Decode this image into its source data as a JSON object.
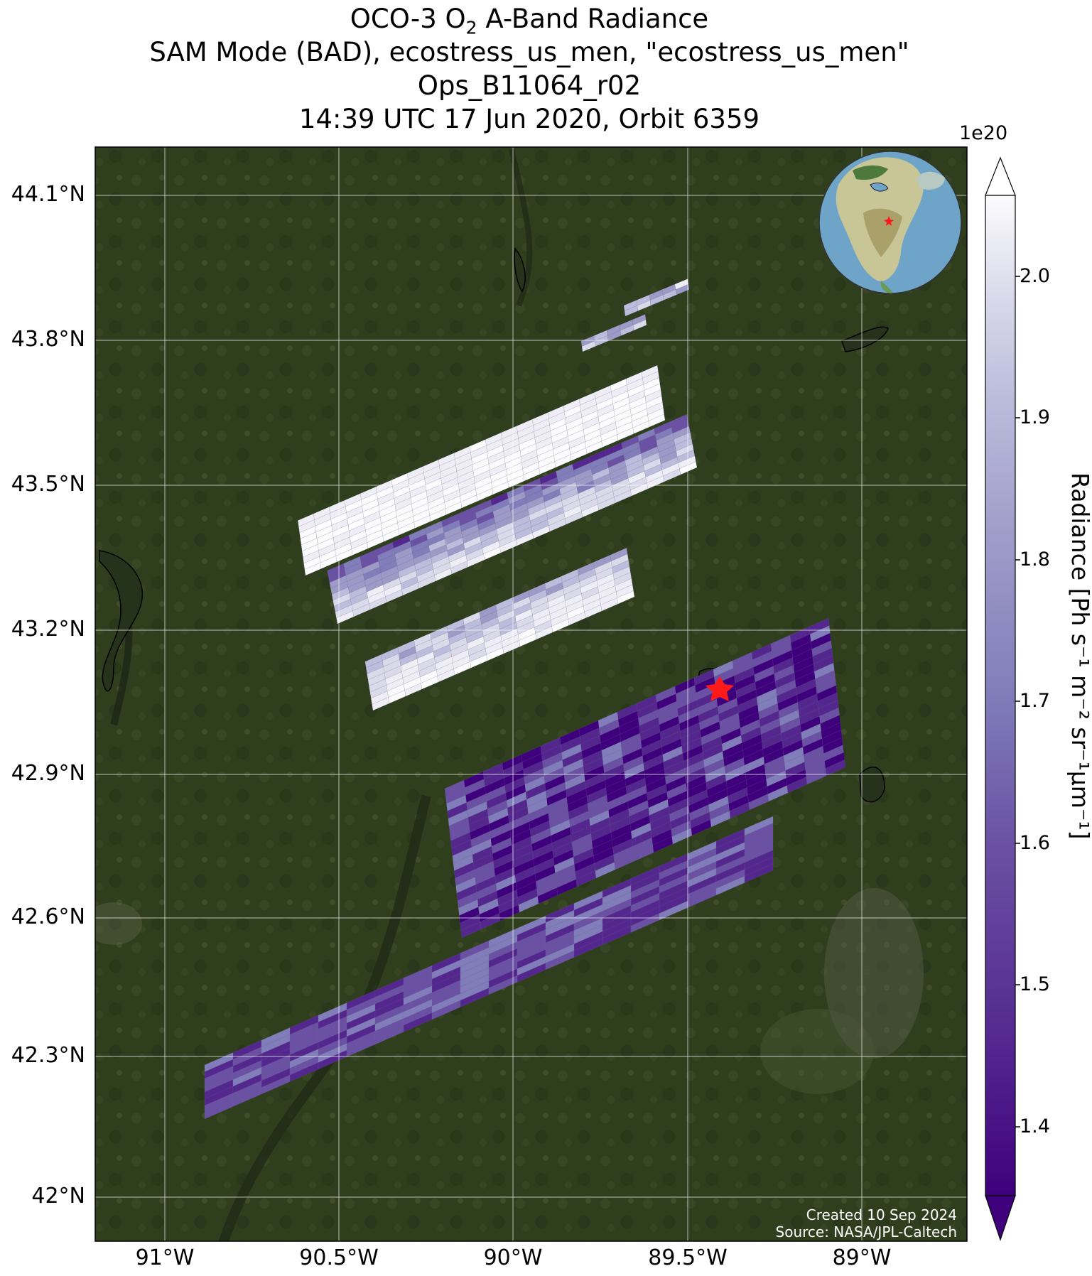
{
  "title": {
    "line1_prefix": "OCO-3 O",
    "line1_sub": "2",
    "line1_suffix": " A-Band Radiance",
    "line2": "SAM Mode (BAD), ecostress_us_men, \"ecostress_us_men\"",
    "line3": "Ops_B11064_r02",
    "line4": "14:39 UTC 17 Jun 2020, Orbit 6359"
  },
  "map": {
    "lat_ticks": [
      "44.1°N",
      "43.8°N",
      "43.5°N",
      "43.2°N",
      "42.9°N",
      "42.6°N",
      "42.3°N",
      "42°N"
    ],
    "lon_ticks": [
      "91°W",
      "90.5°W",
      "90°W",
      "89.5°W",
      "89°W"
    ],
    "target": {
      "lon": -89.4,
      "lat": 43.08,
      "marker": "red-star-icon"
    }
  },
  "colorbar": {
    "scale_label": "1e20",
    "ticks": [
      "2.0",
      "1.9",
      "1.8",
      "1.7",
      "1.6",
      "1.5",
      "1.4"
    ],
    "label": "Radiance [Ph s⁻¹ m⁻² sr⁻¹μm⁻¹]",
    "colormap": "Purples",
    "vmin": 1.35,
    "vmax": 2.05
  },
  "credits": {
    "created": "Created 10 Sep 2024",
    "source": "Source: NASA/JPL-Caltech"
  },
  "colors": {
    "land": "#2f3f1e",
    "lake": "#2c3a24",
    "marker": "#ff1a1a",
    "cmap_dark": "#3f007d",
    "cmap_light": "#fcfbfd"
  }
}
